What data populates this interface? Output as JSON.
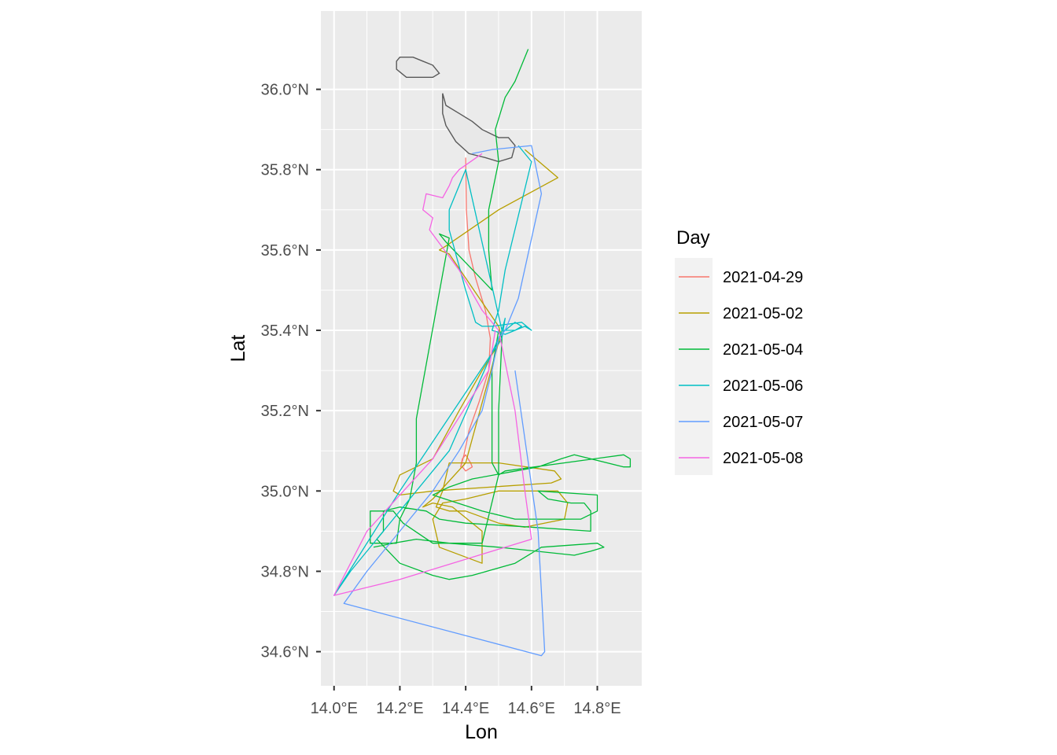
{
  "chart_data": {
    "type": "line",
    "xlabel": "Lon",
    "ylabel": "Lat",
    "xlim": [
      13.96,
      14.935
    ],
    "ylim": [
      34.515,
      36.195
    ],
    "grid": true,
    "legend_title": "Day",
    "legend_position": "right",
    "x_ticks": [
      {
        "value": 14.0,
        "label": "14.0°E"
      },
      {
        "value": 14.2,
        "label": "14.2°E"
      },
      {
        "value": 14.4,
        "label": "14.4°E"
      },
      {
        "value": 14.6,
        "label": "14.6°E"
      },
      {
        "value": 14.8,
        "label": "14.8°E"
      }
    ],
    "y_ticks": [
      {
        "value": 34.6,
        "label": "34.6°N"
      },
      {
        "value": 34.8,
        "label": "34.8°N"
      },
      {
        "value": 35.0,
        "label": "35.0°N"
      },
      {
        "value": 35.2,
        "label": "35.2°N"
      },
      {
        "value": 35.4,
        "label": "35.4°N"
      },
      {
        "value": 35.6,
        "label": "35.6°N"
      },
      {
        "value": 35.8,
        "label": "35.8°N"
      },
      {
        "value": 36.0,
        "label": "36.0°N"
      }
    ],
    "land": {
      "name": "Malta",
      "color": "#595959",
      "fill": "#e8e8e8",
      "points": [
        [
          14.19,
          36.07
        ],
        [
          14.2,
          36.08
        ],
        [
          14.24,
          36.08
        ],
        [
          14.27,
          36.07
        ],
        [
          14.3,
          36.06
        ],
        [
          14.32,
          36.04
        ],
        [
          14.3,
          36.03
        ],
        [
          14.26,
          36.03
        ],
        [
          14.22,
          36.03
        ],
        [
          14.19,
          36.05
        ],
        [
          14.19,
          36.07
        ]
      ],
      "points2": [
        [
          14.33,
          35.99
        ],
        [
          14.34,
          35.96
        ],
        [
          14.38,
          35.94
        ],
        [
          14.42,
          35.92
        ],
        [
          14.45,
          35.9
        ],
        [
          14.5,
          35.88
        ],
        [
          14.53,
          35.88
        ],
        [
          14.55,
          35.86
        ],
        [
          14.54,
          35.83
        ],
        [
          14.5,
          35.82
        ],
        [
          14.46,
          35.83
        ],
        [
          14.41,
          35.84
        ],
        [
          14.37,
          35.87
        ],
        [
          14.34,
          35.91
        ],
        [
          14.33,
          35.94
        ],
        [
          14.33,
          35.97
        ],
        [
          14.33,
          35.99
        ]
      ]
    },
    "series": [
      {
        "name": "2021-04-29",
        "color": "#F8766D",
        "width": 1.3,
        "x": [
          14.4,
          14.402,
          14.41,
          14.43,
          14.46,
          14.475,
          14.47,
          14.44,
          14.41,
          14.395,
          14.385,
          14.39,
          14.4,
          14.415,
          14.42,
          14.4,
          14.39,
          14.4
        ],
        "y": [
          35.83,
          35.7,
          35.6,
          35.53,
          35.45,
          35.38,
          35.3,
          35.22,
          35.15,
          35.09,
          35.06,
          35.08,
          35.09,
          35.07,
          35.06,
          35.05,
          35.06,
          35.07
        ]
      },
      {
        "name": "2021-05-02",
        "color": "#B79F00",
        "width": 1.3,
        "x": [
          14.58,
          14.68,
          14.5,
          14.34,
          14.32,
          14.35,
          14.5,
          14.51,
          14.45,
          14.38,
          14.3,
          14.25,
          14.2,
          14.18,
          14.2,
          14.3,
          14.66,
          14.69,
          14.67,
          14.5,
          14.35,
          14.33,
          14.31,
          14.35,
          14.4,
          14.5,
          14.58,
          14.7,
          14.71,
          14.68,
          14.6,
          14.5,
          14.4,
          14.33,
          14.3,
          14.32,
          14.45,
          14.45,
          14.36,
          14.3,
          14.27,
          14.3,
          14.4,
          14.51
        ],
        "y": [
          35.85,
          35.78,
          35.7,
          35.61,
          35.6,
          35.59,
          35.41,
          35.38,
          35.3,
          35.2,
          35.08,
          35.06,
          35.04,
          35.0,
          34.99,
          35.0,
          35.02,
          35.03,
          35.05,
          35.07,
          35.07,
          35.0,
          34.96,
          34.95,
          34.95,
          34.92,
          34.91,
          34.93,
          34.97,
          35.0,
          35.0,
          35.0,
          34.98,
          34.97,
          34.93,
          34.86,
          34.82,
          34.9,
          34.96,
          34.97,
          34.96,
          34.98,
          35.07,
          35.4
        ]
      },
      {
        "name": "2021-05-04",
        "color": "#00BA38",
        "width": 1.3,
        "x": [
          14.59,
          14.55,
          14.52,
          14.49,
          14.5,
          14.47,
          14.47,
          14.48,
          14.34,
          14.32,
          14.35,
          14.25,
          14.25,
          14.23,
          14.2,
          14.19,
          14.11,
          14.11,
          14.18,
          14.21,
          14.3,
          14.45,
          14.5,
          14.48,
          14.48,
          14.5,
          14.51,
          14.5,
          14.5,
          14.52,
          14.88,
          14.9,
          14.9,
          14.88,
          14.73,
          14.69,
          14.62,
          14.42,
          14.35,
          14.3,
          14.45,
          14.55,
          14.75,
          14.8,
          14.8,
          14.62,
          14.65,
          14.72,
          14.76,
          14.78,
          14.78,
          14.6,
          14.4,
          14.32,
          14.28,
          14.2,
          14.15,
          14.15,
          14.13,
          14.2,
          14.3,
          14.35,
          14.42,
          14.55,
          14.63,
          14.8,
          14.82,
          14.78,
          14.73,
          14.5,
          14.35,
          14.25,
          14.18,
          14.12
        ],
        "y": [
          36.1,
          36.02,
          35.98,
          35.9,
          35.82,
          35.7,
          35.6,
          35.5,
          35.62,
          35.64,
          35.63,
          35.18,
          35.07,
          34.98,
          34.93,
          34.87,
          34.87,
          34.95,
          34.95,
          34.92,
          34.87,
          34.87,
          35.04,
          35.07,
          35.3,
          35.4,
          35.38,
          35.2,
          35.04,
          35.05,
          35.09,
          35.08,
          35.06,
          35.06,
          35.09,
          35.08,
          35.06,
          35.03,
          35.01,
          34.99,
          34.95,
          34.93,
          34.93,
          34.95,
          34.99,
          35.0,
          34.98,
          34.97,
          34.97,
          34.95,
          34.9,
          34.91,
          34.92,
          34.93,
          34.95,
          34.96,
          34.95,
          34.9,
          34.88,
          34.82,
          34.79,
          34.78,
          34.79,
          34.82,
          34.86,
          34.87,
          34.86,
          34.85,
          34.84,
          34.86,
          34.87,
          34.88,
          34.87,
          34.86
        ]
      },
      {
        "name": "2021-05-06",
        "color": "#00BFC4",
        "width": 1.3,
        "x": [
          14.56,
          14.6,
          14.52,
          14.5,
          14.48,
          14.52,
          14.55,
          14.58,
          14.6,
          14.57,
          14.48,
          14.45,
          14.43,
          14.4,
          14.35,
          14.35,
          14.4,
          14.51,
          14.35,
          14.05,
          14.0,
          14.2,
          14.51,
          14.52,
          14.51,
          14.55,
          14.57,
          14.55,
          14.52
        ],
        "y": [
          35.86,
          35.82,
          35.55,
          35.45,
          35.4,
          35.39,
          35.4,
          35.41,
          35.4,
          35.42,
          35.41,
          35.41,
          35.42,
          35.5,
          35.65,
          35.7,
          35.8,
          35.4,
          35.1,
          34.8,
          34.74,
          35.0,
          35.38,
          35.43,
          35.4,
          35.4,
          35.41,
          35.42,
          35.4
        ]
      },
      {
        "name": "2021-05-07",
        "color": "#619CFF",
        "width": 1.3,
        "x": [
          14.42,
          14.48,
          14.6,
          14.63,
          14.56,
          14.52,
          14.5,
          14.48,
          14.45,
          14.38,
          14.3,
          14.2,
          14.1,
          14.03,
          14.63,
          14.64,
          14.62,
          14.55
        ],
        "y": [
          35.84,
          35.85,
          35.86,
          35.74,
          35.48,
          35.4,
          35.38,
          35.3,
          35.2,
          35.1,
          35.0,
          34.9,
          34.8,
          34.72,
          34.59,
          34.6,
          34.9,
          35.3
        ]
      },
      {
        "name": "2021-05-08",
        "color": "#F564E3",
        "width": 1.3,
        "x": [
          14.45,
          14.38,
          14.36,
          14.35,
          14.33,
          14.28,
          14.27,
          14.3,
          14.29,
          14.38,
          14.45,
          14.5,
          14.55,
          14.58,
          14.6,
          14.4,
          14.2,
          14.0,
          14.1,
          14.3,
          14.47,
          14.49
        ],
        "y": [
          35.84,
          35.8,
          35.78,
          35.76,
          35.73,
          35.74,
          35.7,
          35.68,
          35.65,
          35.55,
          35.45,
          35.4,
          35.2,
          35.0,
          34.88,
          34.83,
          34.78,
          34.74,
          34.9,
          35.08,
          35.3,
          35.4
        ]
      }
    ]
  }
}
